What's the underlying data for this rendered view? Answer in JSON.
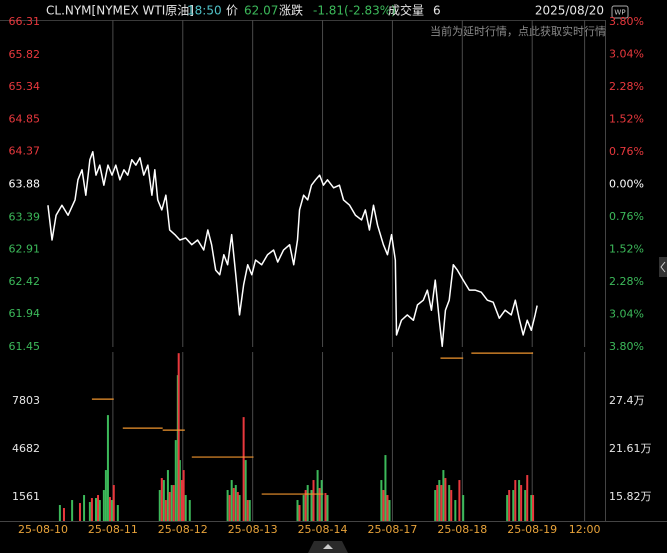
{
  "header": {
    "symbol": "CL.NYM[NYMEX WTI原油]",
    "time": "18:50",
    "price_label": "价",
    "price": 62.07,
    "change_label": "涨跌",
    "change": "-1.81(-2.83%)",
    "volume_label": "成交量",
    "volume": 6,
    "date": "2025/08/20",
    "notice": "当前为延时行情，点此获取实时行情",
    "badge": "WP"
  },
  "tick_colors": {
    "up": "#e8383d",
    "down": "#3cb95a",
    "flat": "#ffffff"
  },
  "chart_data": [
    {
      "type": "line",
      "xlim": [
        0,
        193
      ],
      "x": [
        1.7,
        3.1,
        4.5,
        6.5,
        8.6,
        11.0,
        12.0,
        13.4,
        14.7,
        16.1,
        17.1,
        18.2,
        19.5,
        20.9,
        22.3,
        23.7,
        25.0,
        26.4,
        27.8,
        29.1,
        30.5,
        31.9,
        33.3,
        34.6,
        36.0,
        37.4,
        38.4,
        39.4,
        40.8,
        42.2,
        43.5,
        45.3,
        47.0,
        49.0,
        51.1,
        53.1,
        55.2,
        56.6,
        57.9,
        59.3,
        60.7,
        62.1,
        63.4,
        64.8,
        66.2,
        67.5,
        68.9,
        70.3,
        71.7,
        73.0,
        75.1,
        77.1,
        79.2,
        80.6,
        82.6,
        84.7,
        86.1,
        87.4,
        88.1,
        89.5,
        90.9,
        92.2,
        93.6,
        95.0,
        96.3,
        97.7,
        99.8,
        101.8,
        103.2,
        105.3,
        107.3,
        109.4,
        110.7,
        112.1,
        113.5,
        114.9,
        116.9,
        118.3,
        119.7,
        121.0,
        121.4,
        123.1,
        125.1,
        127.2,
        128.6,
        130.6,
        132.0,
        133.4,
        134.7,
        136.1,
        137.1,
        138.2,
        139.5,
        140.9,
        142.3,
        144.3,
        146.4,
        148.5,
        150.5,
        152.6,
        154.6,
        156.7,
        158.7,
        160.8,
        162.2,
        163.5,
        164.9,
        166.3,
        167.7,
        169.0,
        169.7
      ],
      "series": [
        {
          "color": "#ffffff",
          "values": [
            63.57,
            63.05,
            63.42,
            63.57,
            63.42,
            63.65,
            63.95,
            64.1,
            63.72,
            64.25,
            64.37,
            64.02,
            64.17,
            63.87,
            64.17,
            64.02,
            64.17,
            63.95,
            64.1,
            64.02,
            64.25,
            64.17,
            64.28,
            64.02,
            64.17,
            63.72,
            64.1,
            63.65,
            63.5,
            63.72,
            63.2,
            63.13,
            63.05,
            63.08,
            62.98,
            63.05,
            62.9,
            63.2,
            62.98,
            62.6,
            62.53,
            62.83,
            62.68,
            63.13,
            62.53,
            61.93,
            62.38,
            62.68,
            62.53,
            62.75,
            62.68,
            62.83,
            62.9,
            62.72,
            62.9,
            62.98,
            62.68,
            63.05,
            63.5,
            63.72,
            63.65,
            63.87,
            63.95,
            64.02,
            63.87,
            63.95,
            63.83,
            63.87,
            63.65,
            63.57,
            63.42,
            63.35,
            63.5,
            63.2,
            63.57,
            63.27,
            62.98,
            62.83,
            63.13,
            62.75,
            61.63,
            61.85,
            61.93,
            61.85,
            62.08,
            62.15,
            62.3,
            62.0,
            62.45,
            61.85,
            61.46,
            62.0,
            62.15,
            62.68,
            62.6,
            62.45,
            62.3,
            62.3,
            62.27,
            62.15,
            62.12,
            61.88,
            62.0,
            61.93,
            62.15,
            61.88,
            61.63,
            61.85,
            61.7,
            61.93,
            62.07
          ]
        }
      ],
      "ylim": [
        61.45,
        66.31
      ],
      "yticks": [
        66.31,
        65.82,
        65.34,
        64.85,
        64.37,
        63.88,
        63.39,
        62.91,
        62.42,
        61.94,
        61.45
      ],
      "y2lim": [
        -3.8,
        3.8
      ],
      "y2ticks": [
        {
          "value": 3.8,
          "label": "3.80%"
        },
        {
          "value": 3.04,
          "label": "3.04%"
        },
        {
          "value": 2.28,
          "label": "2.28%"
        },
        {
          "value": 1.52,
          "label": "1.52%"
        },
        {
          "value": 0.76,
          "label": "0.76%"
        },
        {
          "value": 0,
          "label": "0.00%"
        },
        {
          "value": -0.76,
          "label": "0.76%"
        },
        {
          "value": -1.52,
          "label": "1.52%"
        },
        {
          "value": -2.28,
          "label": "2.28%"
        },
        {
          "value": -3.04,
          "label": "3.04%"
        },
        {
          "value": -3.8,
          "label": "3.80%"
        }
      ]
    },
    {
      "type": "bar",
      "xlim": [
        0,
        193
      ],
      "xticks": [
        {
          "value": 0,
          "label": "25-08-10"
        },
        {
          "value": 24,
          "label": "25-08-11"
        },
        {
          "value": 48,
          "label": "25-08-12"
        },
        {
          "value": 72,
          "label": "25-08-13"
        },
        {
          "value": 96,
          "label": "25-08-14"
        },
        {
          "value": 120,
          "label": "25-08-17"
        },
        {
          "value": 144,
          "label": "25-08-18"
        },
        {
          "value": 168,
          "label": "25-08-19"
        },
        {
          "value": 186,
          "label": "12:00"
        }
      ],
      "series": [
        {
          "color": "#3cb95a",
          "x": [
            5.8,
            10.0,
            14.1,
            16.1,
            18.2,
            19.5,
            20.9,
            21.6,
            22.3,
            23.7,
            25.7,
            40.1,
            41.5,
            42.9,
            44.2,
            45.6,
            46.3,
            47.0,
            49.0,
            50.4,
            63.4,
            64.8,
            66.2,
            67.5,
            69.6,
            71.0,
            87.4,
            89.5,
            90.9,
            92.2,
            94.3,
            95.7,
            97.7,
            116.2,
            117.6,
            119.0,
            134.7,
            136.1,
            137.5,
            139.5,
            141.6,
            144.3,
            159.4,
            161.5,
            163.5,
            165.6,
            167.7
          ],
          "values": [
            1040,
            1365,
            1690,
            1235,
            1495,
            1365,
            2016,
            3316,
            6892,
            1365,
            1040,
            2016,
            2666,
            3316,
            2341,
            5267,
            9493,
            3966,
            1690,
            1365,
            2016,
            2666,
            2341,
            1690,
            3966,
            1365,
            1365,
            1690,
            2341,
            2016,
            3316,
            2666,
            1690,
            2666,
            4291,
            1365,
            2016,
            2666,
            3316,
            2341,
            1365,
            1690,
            1690,
            2016,
            2666,
            2016,
            1690
          ]
        },
        {
          "color": "#e8383d",
          "x": [
            7.2,
            12.7,
            16.8,
            18.9,
            23.0,
            24.3,
            40.8,
            42.2,
            43.5,
            44.9,
            46.6,
            47.7,
            48.3,
            64.1,
            65.5,
            66.9,
            68.9,
            70.3,
            88.1,
            90.2,
            92.9,
            95.0,
            97.0,
            116.9,
            118.3,
            135.4,
            136.8,
            138.2,
            140.2,
            143.0,
            160.1,
            162.2,
            164.2,
            166.3,
            168.3
          ],
          "values": [
            845,
            1170,
            1495,
            1690,
            1560,
            2341,
            2796,
            1365,
            1886,
            2341,
            10923,
            2666,
            3316,
            1690,
            2146,
            1886,
            6762,
            1365,
            1040,
            2016,
            2666,
            2146,
            1821,
            2016,
            1690,
            2341,
            2341,
            2796,
            2016,
            2666,
            2016,
            2666,
            2341,
            2991,
            1690
          ]
        },
        {
          "type": "step",
          "axis": "y2",
          "color": "#f0952e",
          "x_start": [
            16.8,
            27.4,
            41.1,
            51.1,
            75.1,
            136.5,
            147.1
          ],
          "x_end": [
            24.3,
            41.1,
            48.7,
            72.3,
            96.3,
            144.3,
            168.3
          ],
          "values": [
            27.64,
            24.14,
            23.9,
            20.65,
            16.18,
            32.59,
            33.19
          ]
        }
      ],
      "ylim": [
        0,
        11000
      ],
      "yticks": [
        1561,
        4682,
        7803
      ],
      "y2lim": [
        12.93,
        33.33
      ],
      "y2ticks": [
        {
          "value": 15.82,
          "label": "15.82万"
        },
        {
          "value": 21.61,
          "label": "21.61万"
        },
        {
          "value": 27.4,
          "label": "27.4万"
        }
      ]
    }
  ]
}
